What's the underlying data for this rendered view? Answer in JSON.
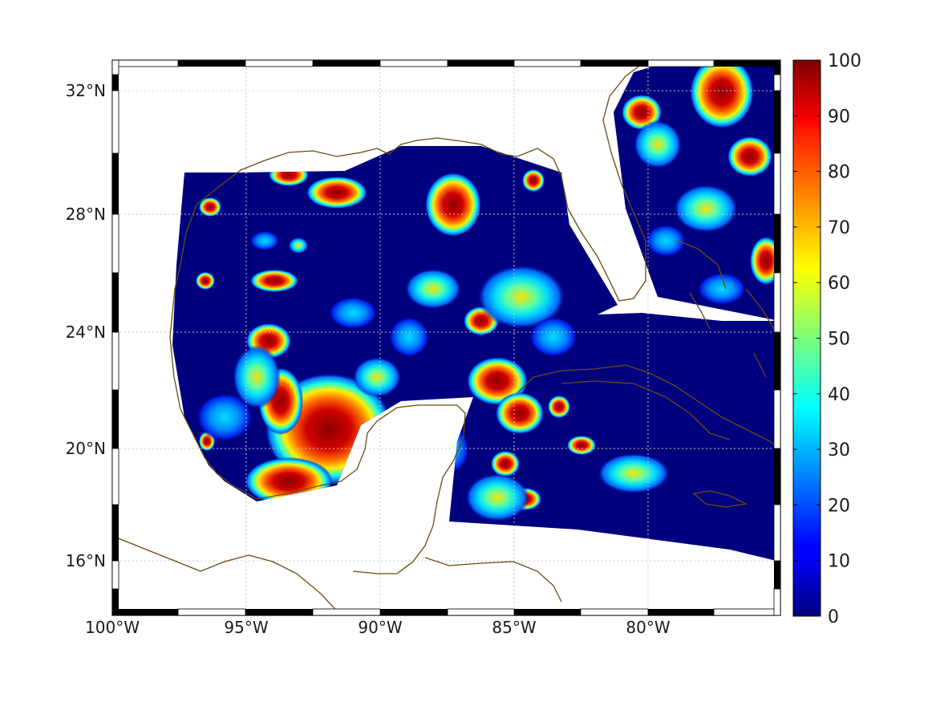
{
  "map": {
    "type": "heatmap",
    "projection": "Mercator",
    "region": "Gulf of Mexico and western Caribbean",
    "lon_range": [
      -100,
      -75
    ],
    "lat_range": [
      14.3,
      33
    ],
    "grid": true,
    "x_ticks": [
      "100°W",
      "95°W",
      "90°W",
      "85°W",
      "80°W"
    ],
    "y_ticks": [
      "16°N",
      "20°N",
      "24°N",
      "28°N",
      "32°N"
    ],
    "colors": {
      "coastline": "#6b4a10",
      "background": "#00007f",
      "land": "#ffffff"
    }
  },
  "colorbar": {
    "colormap": "jet",
    "range": [
      0,
      100
    ],
    "ticks": [
      "0",
      "10",
      "20",
      "30",
      "40",
      "50",
      "60",
      "70",
      "80",
      "90",
      "100"
    ]
  }
}
